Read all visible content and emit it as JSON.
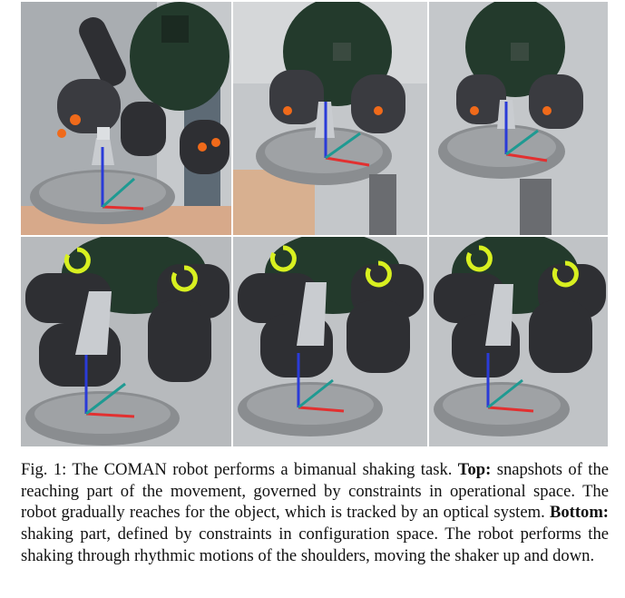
{
  "figure": {
    "panels": [
      {
        "row": "top",
        "index": 1
      },
      {
        "row": "top",
        "index": 2
      },
      {
        "row": "top",
        "index": 3
      },
      {
        "row": "bottom",
        "index": 1
      },
      {
        "row": "bottom",
        "index": 2
      },
      {
        "row": "bottom",
        "index": 3
      }
    ],
    "colors": {
      "robot_dark": "#2e2f33",
      "robot_green": "#233a2c",
      "tray": "#8a8d90",
      "arrow_red": "#e23030",
      "arrow_blue": "#2a3bd8",
      "arrow_teal": "#1f9a92",
      "marker_orange": "#f06a1a",
      "rotation_yellow": "#d8f020"
    }
  },
  "caption": {
    "label": "Fig. 1: The COMAN robot performs a bimanual shaking task.",
    "top_label": "Top:",
    "top_text": "snapshots of the reaching part of the movement, governed by constraints in operational space. The robot gradually reaches for the object, which is tracked by an optical system.",
    "bottom_label": "Bottom:",
    "bottom_text": "shaking part, defined by constraints in configuration space. The robot performs the shaking through rhythmic motions of the shoulders, moving the shaker up and down."
  }
}
